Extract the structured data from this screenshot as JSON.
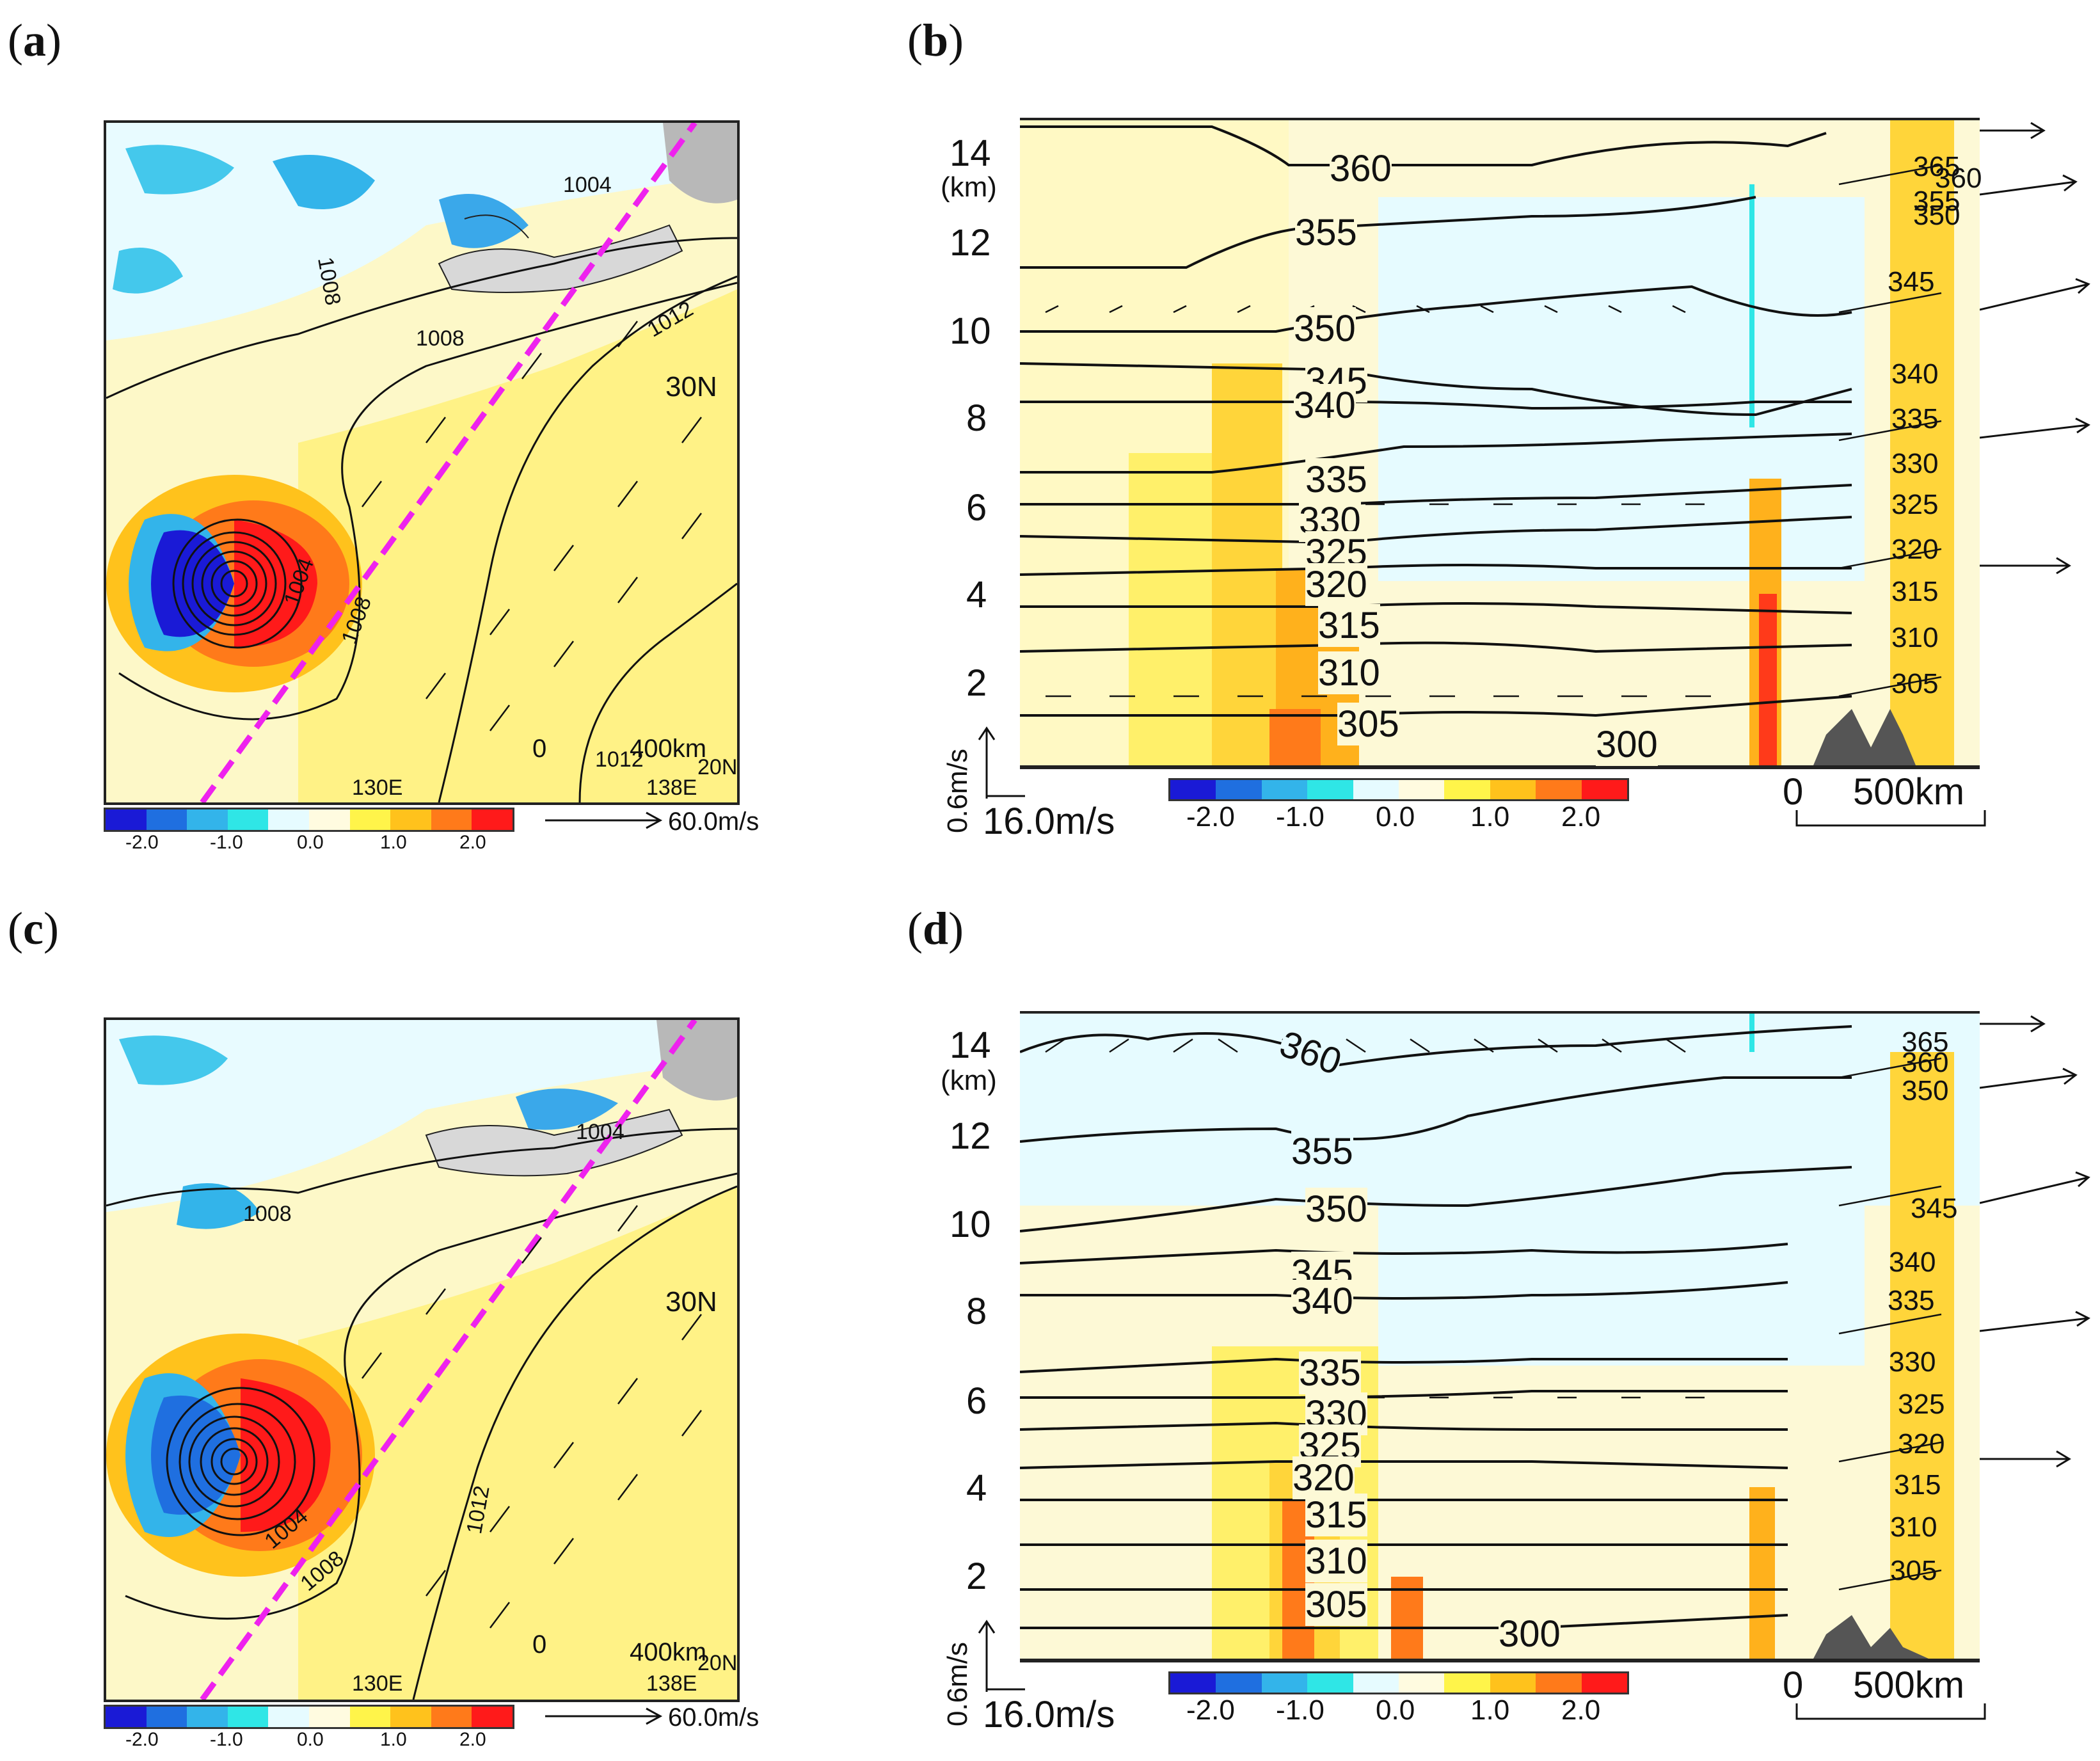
{
  "panel_labels": {
    "a": "a",
    "b": "b",
    "c": "c",
    "d": "d"
  },
  "colorbar": {
    "colors": [
      "#1a1ad6",
      "#1f6fe0",
      "#33b4ea",
      "#2fe6e6",
      "#e6fbff",
      "#fffbe0",
      "#fff44a",
      "#ffc21c",
      "#ff7a1a",
      "#ff1a1a"
    ],
    "ticks": [
      "-2.0",
      "-1.0",
      "0.0",
      "1.0",
      "2.0"
    ]
  },
  "map": {
    "isobars": [
      "1008",
      "1004",
      "1008",
      "1012",
      "1012",
      "1008",
      "1004"
    ],
    "isobars_c": [
      "1008",
      "1004",
      "1004",
      "1008",
      "1012"
    ],
    "lat_label": "30N",
    "lat_label2": "20N",
    "lon_label1": "130E",
    "lon_label2": "138E",
    "scale_zero": "0",
    "scale_text": "400km",
    "vector_ref": "60.0m/s"
  },
  "section": {
    "y_ticks": [
      "14",
      "12",
      "10",
      "8",
      "6",
      "4",
      "2"
    ],
    "y_unit": "(km)",
    "vert_ref": "0.6m/s",
    "horiz_ref": "16.0m/s",
    "scale_zero": "0",
    "scale_text": "500km",
    "theta_labels_b": [
      "360",
      "355",
      "350",
      "345",
      "340",
      "335",
      "330",
      "325",
      "320",
      "315",
      "310",
      "305",
      "300",
      "365",
      "360",
      "355",
      "350",
      "345",
      "340",
      "335",
      "330",
      "325",
      "320",
      "315",
      "310",
      "305"
    ],
    "theta_labels_d": [
      "360",
      "355",
      "350",
      "345",
      "340",
      "335",
      "330",
      "325",
      "320",
      "315",
      "310",
      "305",
      "300",
      "365",
      "360",
      "350",
      "345",
      "340",
      "335",
      "330",
      "325",
      "320",
      "315",
      "310",
      "305"
    ]
  }
}
